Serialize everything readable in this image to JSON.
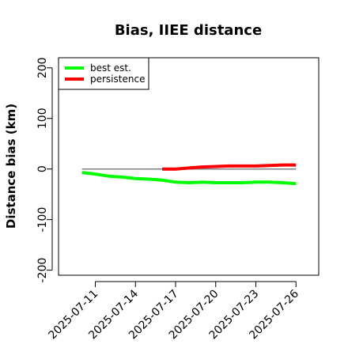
{
  "chart_data": {
    "type": "line",
    "title": "Bias, IIEE distance",
    "xlabel": "",
    "ylabel": "Distance bias (km)",
    "x_ticks": [
      "2025-07-11",
      "2025-07-14",
      "2025-07-17",
      "2025-07-20",
      "2025-07-23",
      "2025-07-26"
    ],
    "x_tick_days": [
      11,
      14,
      17,
      20,
      23,
      26
    ],
    "xlim_days": [
      8.25,
      27.7
    ],
    "ylim": [
      -210,
      220
    ],
    "y_ticks": [
      -200,
      -100,
      0,
      100,
      200
    ],
    "zero_line": 0,
    "grid": false,
    "legend_position": "top-left",
    "series": [
      {
        "name": "best est.",
        "color": "#00ff00",
        "x_days": [
          10,
          11,
          12,
          13,
          14,
          15,
          16,
          17,
          18,
          19,
          20,
          21,
          22,
          23,
          24,
          25,
          26
        ],
        "values": [
          -7,
          -10,
          -14,
          -16,
          -19,
          -20,
          -22,
          -26,
          -27,
          -26,
          -27,
          -27,
          -27,
          -26,
          -26,
          -27,
          -29
        ]
      },
      {
        "name": "persistence",
        "color": "#ff0000",
        "x_days": [
          16,
          17,
          18,
          19,
          20,
          21,
          22,
          23,
          24,
          25,
          26
        ],
        "values": [
          0,
          0,
          2,
          4,
          5,
          6,
          6,
          6,
          7,
          8,
          8
        ]
      }
    ]
  }
}
